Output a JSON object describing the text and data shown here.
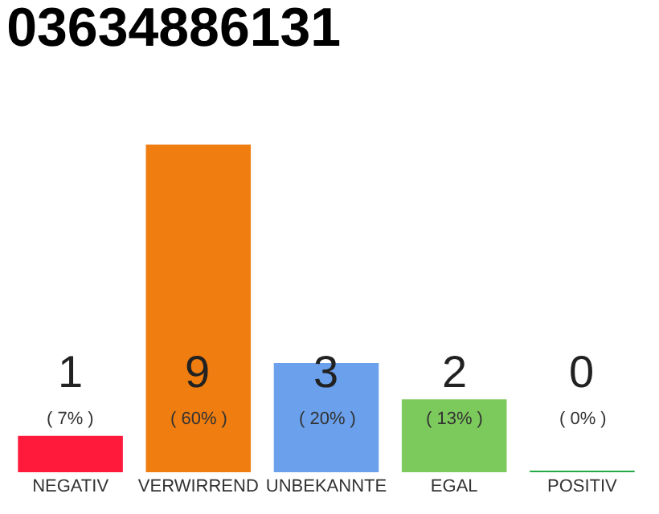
{
  "chart_data": {
    "type": "bar",
    "title": "03634886131",
    "categories": [
      "NEGATIV",
      "VERWIRREND",
      "UNBEKANNTE",
      "EGAL",
      "POSITIV"
    ],
    "values": [
      1,
      9,
      3,
      2,
      0
    ],
    "colors": [
      "#ff1a3c",
      "#f07d0f",
      "#6aa0ec",
      "#7cc95c",
      "#22aa44"
    ],
    "value_labels": [
      "1\n( 7% )",
      "9\n( 60% )",
      "3\n( 20% )",
      "2\n( 13% )",
      "0\n( 0% )"
    ]
  }
}
